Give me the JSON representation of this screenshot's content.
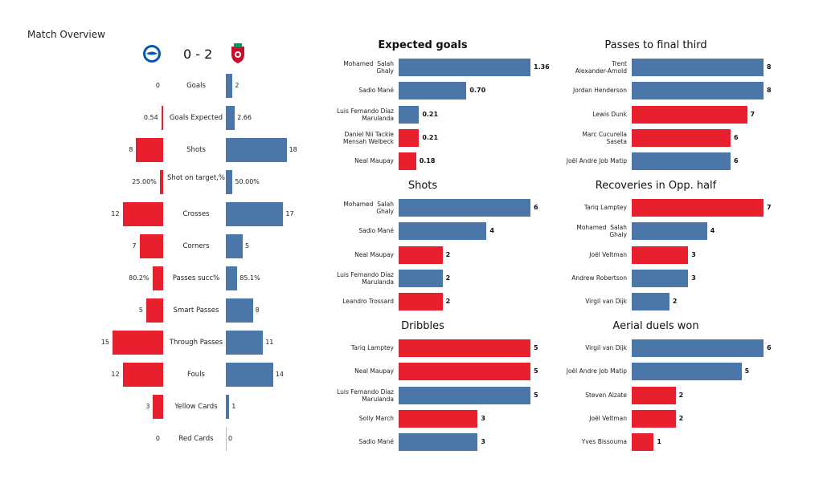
{
  "title": "Match Overview",
  "score": "0 - 2",
  "colors": {
    "home": "#e8202e",
    "away": "#4a76a8"
  },
  "home_crest_icon": "brighton-crest-icon",
  "away_crest_icon": "liverpool-crest-icon",
  "chart_data": [
    {
      "type": "bar",
      "title": "Match Overview",
      "categories": [
        "Goals",
        "Goals Expected",
        "Shots",
        "Shot on target,%",
        "Crosses",
        "Corners",
        "Passes succ%",
        "Smart Passes",
        "Through Passes",
        "Fouls",
        "Yellow Cards",
        "Red Cards"
      ],
      "series": [
        {
          "values": [
            0,
            0.54,
            8,
            25.0,
            12,
            7,
            80.2,
            5,
            15,
            12,
            3,
            0
          ],
          "labels": [
            "0",
            "0.54",
            "8",
            "25.00%",
            "12",
            "7",
            "80.2%",
            "5",
            "15",
            "12",
            "3",
            "0"
          ],
          "color": "#e8202e"
        },
        {
          "values": [
            2,
            2.66,
            18,
            50.0,
            17,
            5,
            85.1,
            8,
            11,
            14,
            1,
            0
          ],
          "labels": [
            "2",
            "2.66",
            "18",
            "50.00%",
            "17",
            "5",
            "85.1%",
            "8",
            "11",
            "14",
            "1",
            "0"
          ],
          "color": "#4a76a8"
        }
      ]
    },
    {
      "type": "bar",
      "title": "Expected goals",
      "categories": [
        "Mohamed  Salah\nGhaly",
        "Sadio Mané",
        "Luis Fernando Díaz\nMarulanda",
        "Daniel Nii Tackie\nMensah Welbeck",
        "Neal Maupay"
      ],
      "values": [
        1.36,
        0.7,
        0.21,
        0.21,
        0.18
      ],
      "labels": [
        "1.36",
        "0.70",
        "0.21",
        "0.21",
        "0.18"
      ],
      "colors": [
        "away",
        "away",
        "away",
        "home",
        "home"
      ]
    },
    {
      "type": "bar",
      "title": "Passes to final third",
      "categories": [
        "Trent\nAlexander-Arnold",
        "Jordan Henderson",
        "Lewis Dunk",
        "Marc Cucurella\nSaseta",
        "Joël Andre Job Matip"
      ],
      "values": [
        8,
        8,
        7,
        6,
        6
      ],
      "labels": [
        "8",
        "8",
        "7",
        "6",
        "6"
      ],
      "colors": [
        "away",
        "away",
        "home",
        "home",
        "away"
      ]
    },
    {
      "type": "bar",
      "title": "Shots",
      "categories": [
        "Mohamed  Salah\nGhaly",
        "Sadio Mané",
        "Neal Maupay",
        "Luis Fernando Díaz\nMarulanda",
        "Leandro Trossard"
      ],
      "values": [
        6,
        4,
        2,
        2,
        2
      ],
      "labels": [
        "6",
        "4",
        "2",
        "2",
        "2"
      ],
      "colors": [
        "away",
        "away",
        "home",
        "away",
        "home"
      ]
    },
    {
      "type": "bar",
      "title": "Recoveries in Opp. half",
      "categories": [
        "Tariq Lamptey",
        "Mohamed  Salah\nGhaly",
        "Joël Veltman",
        "Andrew Robertson",
        "Virgil van Dijk"
      ],
      "values": [
        7,
        4,
        3,
        3,
        2
      ],
      "labels": [
        "7",
        "4",
        "3",
        "3",
        "2"
      ],
      "colors": [
        "home",
        "away",
        "home",
        "away",
        "away"
      ]
    },
    {
      "type": "bar",
      "title": "Dribbles",
      "categories": [
        "Tariq Lamptey",
        "Neal Maupay",
        "Luis Fernando Díaz\nMarulanda",
        "Solly March",
        "Sadio Mané"
      ],
      "values": [
        5,
        5,
        5,
        3,
        3
      ],
      "labels": [
        "5",
        "5",
        "5",
        "3",
        "3"
      ],
      "colors": [
        "home",
        "home",
        "away",
        "home",
        "away"
      ]
    },
    {
      "type": "bar",
      "title": "Aerial duels won",
      "categories": [
        "Virgil van Dijk",
        "Joël Andre Job Matip",
        "Steven Alzate",
        "Joël Veltman",
        "Yves Bissouma"
      ],
      "values": [
        6,
        5,
        2,
        2,
        1
      ],
      "labels": [
        "6",
        "5",
        "2",
        "2",
        "1"
      ],
      "colors": [
        "away",
        "away",
        "home",
        "home",
        "home"
      ]
    }
  ]
}
